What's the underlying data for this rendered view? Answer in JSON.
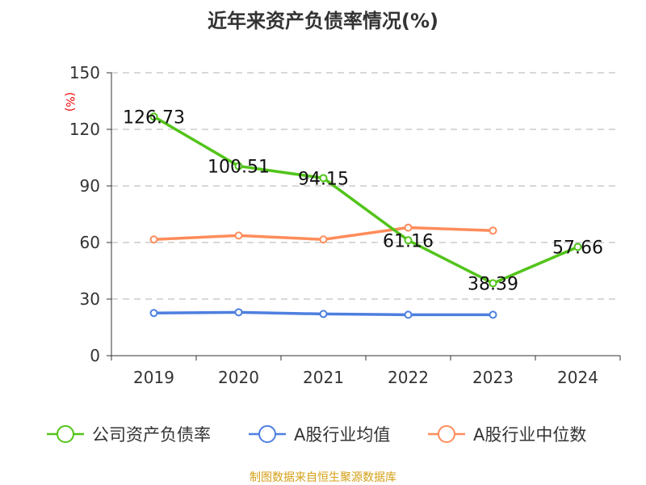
{
  "chart_data": {
    "type": "line",
    "title": "近年来资产负债率情况(%)",
    "ylabel": "(%)",
    "categories": [
      "2019",
      "2020",
      "2021",
      "2022",
      "2023",
      "2024"
    ],
    "ylim": [
      0,
      150
    ],
    "yticks": [
      0,
      30,
      60,
      90,
      120,
      150
    ],
    "grid": true,
    "legend_position": "bottom",
    "series": [
      {
        "name": "公司资产负债率",
        "color": "#52c41a",
        "values": [
          126.73,
          100.51,
          94.15,
          61.16,
          38.39,
          57.66
        ],
        "labels": [
          "126.73",
          "100.51",
          "94.15",
          "61.16",
          "38.39",
          "57.66"
        ]
      },
      {
        "name": "A股行业均值",
        "color": "#4e7fe0",
        "values": [
          22.6,
          23.0,
          22.1,
          21.7,
          21.7,
          null
        ]
      },
      {
        "name": "A股行业中位数",
        "color": "#ff8c5a",
        "values": [
          61.6,
          63.7,
          61.6,
          67.9,
          66.3,
          null
        ]
      }
    ]
  },
  "footer": "制图数据来自恒生聚源数据库"
}
